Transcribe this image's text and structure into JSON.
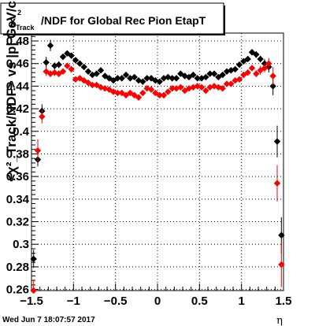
{
  "timestamp": "Wed Jun  7 18:07:57 2017",
  "chart_data": {
    "type": "scatter",
    "title": "χ²_Track/NDF for Global Rec Pion EtapT",
    "title_parts": {
      "chi": "χ",
      "sup": "2",
      "sub": "Track",
      "rest": "/NDF for Global Rec Pion EtapT"
    },
    "xlabel": "η",
    "ylabel": "<χ²_Track/NDF> vs |p| GeV/c",
    "xlim": [
      -1.5,
      1.5
    ],
    "ylim": [
      0.259,
      0.487
    ],
    "xticks": [
      -1.5,
      -1,
      -0.5,
      0,
      0.5,
      1,
      1.5
    ],
    "xtick_labels": [
      "−1.5",
      "−1",
      "−0.5",
      "0",
      "0.5",
      "1",
      "1.5"
    ],
    "yticks": [
      0.26,
      0.28,
      0.3,
      0.32,
      0.34,
      0.36,
      0.38,
      0.4,
      0.42,
      0.44,
      0.46,
      0.48
    ],
    "ytick_labels": [
      "0.26",
      "0.28",
      "0.3",
      "0.32",
      "0.34",
      "0.36",
      "0.38",
      "0.4",
      "0.42",
      "0.44",
      "0.46",
      "0.48"
    ],
    "grid": true,
    "series": [
      {
        "color": "#000000",
        "x": [
          -1.475,
          -1.425,
          -1.375,
          -1.325,
          -1.275,
          -1.225,
          -1.175,
          -1.125,
          -1.075,
          -1.025,
          -0.975,
          -0.925,
          -0.875,
          -0.825,
          -0.775,
          -0.725,
          -0.675,
          -0.625,
          -0.575,
          -0.525,
          -0.475,
          -0.425,
          -0.375,
          -0.325,
          -0.275,
          -0.225,
          -0.175,
          -0.125,
          -0.075,
          -0.025,
          0.025,
          0.075,
          0.125,
          0.175,
          0.225,
          0.275,
          0.325,
          0.375,
          0.425,
          0.475,
          0.525,
          0.575,
          0.625,
          0.675,
          0.725,
          0.775,
          0.825,
          0.875,
          0.925,
          0.975,
          1.025,
          1.075,
          1.125,
          1.175,
          1.225,
          1.275,
          1.325,
          1.375,
          1.425,
          1.475
        ],
        "y": [
          0.287,
          0.375,
          0.418,
          0.461,
          0.476,
          0.458,
          0.459,
          0.466,
          0.469,
          0.467,
          0.463,
          0.46,
          0.457,
          0.453,
          0.45,
          0.451,
          0.454,
          0.449,
          0.447,
          0.445,
          0.447,
          0.447,
          0.45,
          0.447,
          0.448,
          0.445,
          0.444,
          0.447,
          0.447,
          0.445,
          0.444,
          0.447,
          0.448,
          0.447,
          0.447,
          0.451,
          0.449,
          0.448,
          0.45,
          0.447,
          0.447,
          0.448,
          0.451,
          0.451,
          0.448,
          0.45,
          0.453,
          0.454,
          0.455,
          0.459,
          0.462,
          0.464,
          0.47,
          0.468,
          0.464,
          0.46,
          0.457,
          0.44,
          0.391,
          0.308
        ],
        "err": [
          0.008,
          0.006,
          0.006,
          0.005,
          0.005,
          0.003,
          0.003,
          0.002,
          0.002,
          0.002,
          0.002,
          0.002,
          0.002,
          0.002,
          0.002,
          0.002,
          0.002,
          0.002,
          0.002,
          0.002,
          0.002,
          0.002,
          0.002,
          0.002,
          0.002,
          0.002,
          0.002,
          0.002,
          0.002,
          0.002,
          0.002,
          0.002,
          0.002,
          0.002,
          0.002,
          0.002,
          0.002,
          0.002,
          0.002,
          0.002,
          0.002,
          0.002,
          0.002,
          0.002,
          0.002,
          0.002,
          0.002,
          0.002,
          0.002,
          0.002,
          0.002,
          0.002,
          0.002,
          0.003,
          0.003,
          0.004,
          0.005,
          0.008,
          0.014,
          0.016
        ]
      },
      {
        "color": "#ff0000",
        "x": [
          -1.475,
          -1.425,
          -1.375,
          -1.325,
          -1.275,
          -1.225,
          -1.175,
          -1.125,
          -1.075,
          -1.025,
          -0.975,
          -0.925,
          -0.875,
          -0.825,
          -0.775,
          -0.725,
          -0.675,
          -0.625,
          -0.575,
          -0.525,
          -0.475,
          -0.425,
          -0.375,
          -0.325,
          -0.275,
          -0.225,
          -0.175,
          -0.125,
          -0.075,
          -0.025,
          0.025,
          0.075,
          0.125,
          0.175,
          0.225,
          0.275,
          0.325,
          0.375,
          0.425,
          0.475,
          0.525,
          0.575,
          0.625,
          0.675,
          0.725,
          0.775,
          0.825,
          0.875,
          0.925,
          0.975,
          1.025,
          1.075,
          1.125,
          1.175,
          1.225,
          1.275,
          1.325,
          1.375,
          1.425,
          1.475
        ],
        "y": [
          0.259,
          0.383,
          0.413,
          0.453,
          0.451,
          0.452,
          0.451,
          0.453,
          0.458,
          0.455,
          0.446,
          0.447,
          0.445,
          0.443,
          0.441,
          0.441,
          0.439,
          0.438,
          0.437,
          0.435,
          0.434,
          0.434,
          0.432,
          0.434,
          0.432,
          0.43,
          0.434,
          0.438,
          0.437,
          0.434,
          0.432,
          0.432,
          0.435,
          0.438,
          0.438,
          0.439,
          0.436,
          0.438,
          0.439,
          0.44,
          0.439,
          0.436,
          0.439,
          0.44,
          0.439,
          0.438,
          0.442,
          0.442,
          0.445,
          0.446,
          0.45,
          0.452,
          0.456,
          0.451,
          0.454,
          0.456,
          0.46,
          0.449,
          0.354,
          0.282
        ],
        "err": [
          0.01,
          0.01,
          0.006,
          0.004,
          0.003,
          0.003,
          0.003,
          0.002,
          0.002,
          0.002,
          0.002,
          0.002,
          0.002,
          0.002,
          0.002,
          0.002,
          0.002,
          0.002,
          0.002,
          0.002,
          0.002,
          0.002,
          0.002,
          0.002,
          0.002,
          0.002,
          0.002,
          0.002,
          0.002,
          0.002,
          0.002,
          0.002,
          0.002,
          0.002,
          0.002,
          0.002,
          0.002,
          0.002,
          0.002,
          0.002,
          0.002,
          0.002,
          0.002,
          0.002,
          0.002,
          0.002,
          0.002,
          0.002,
          0.002,
          0.002,
          0.002,
          0.002,
          0.002,
          0.003,
          0.004,
          0.004,
          0.005,
          0.008,
          0.016,
          0.02
        ]
      }
    ]
  }
}
